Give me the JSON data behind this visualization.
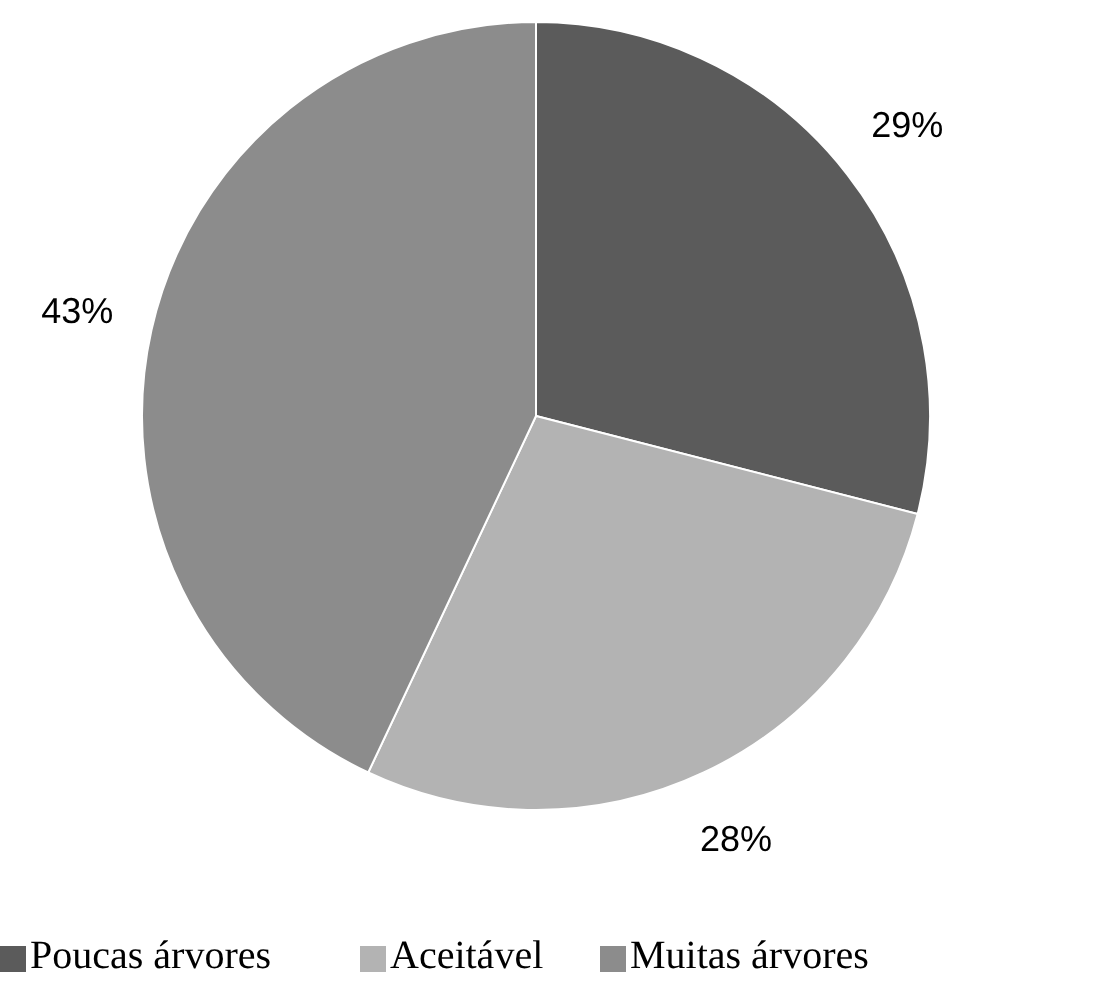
{
  "chart_data": {
    "type": "pie",
    "categories": [
      "Poucas árvores",
      "Aceitável",
      "Muitas árvores"
    ],
    "values": [
      29,
      28,
      43
    ],
    "colors": [
      "#5b5b5b",
      "#b3b3b3",
      "#8c8c8c"
    ],
    "value_labels": [
      "29%",
      "28%",
      "43%"
    ],
    "legend": "bottom"
  }
}
